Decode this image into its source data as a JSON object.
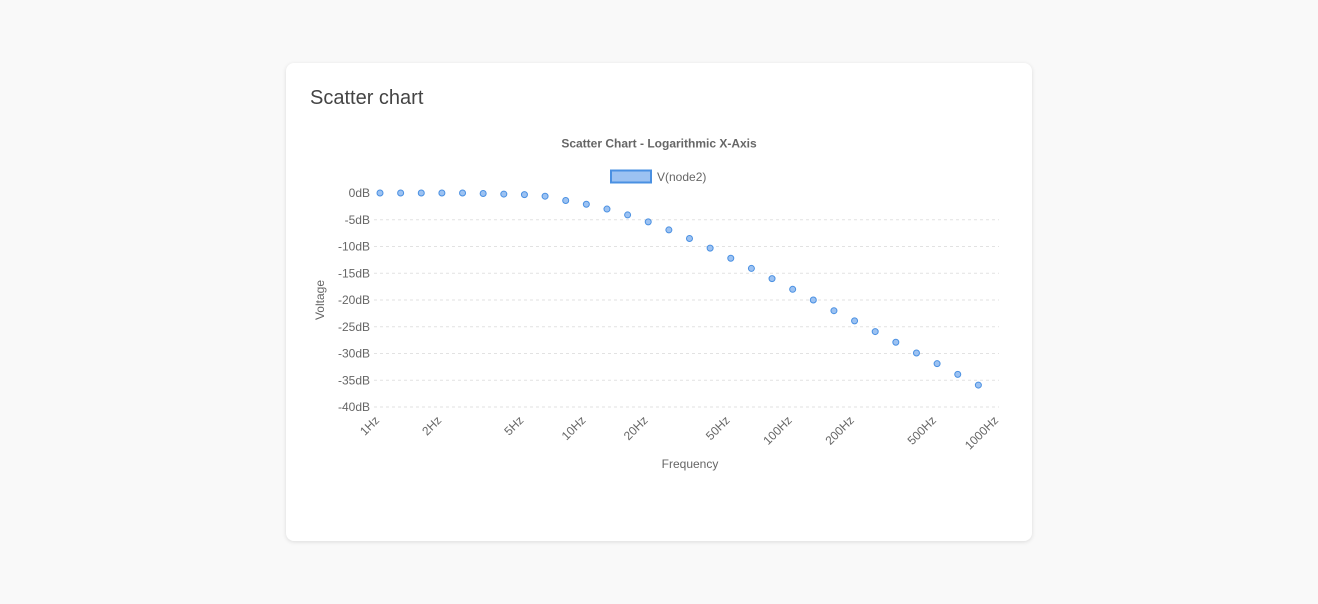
{
  "card": {
    "title": "Scatter chart"
  },
  "colors": {
    "point_fill": "#9cc2f2",
    "point_stroke": "#4a90e2",
    "legend_fill": "#9cc2f2",
    "legend_stroke": "#4a90e2",
    "grid": "#e2e2e2",
    "text": "#666666"
  },
  "chart_data": {
    "type": "scatter",
    "title": "Scatter Chart - Logarithmic X-Axis",
    "xlabel": "Frequency",
    "ylabel": "Voltage",
    "x_scale": "log",
    "xlim": [
      1,
      1000
    ],
    "ylim": [
      -40,
      0
    ],
    "grid": "horizontal, dashed",
    "legend_position": "top",
    "x_ticks": [
      {
        "value": 1,
        "label": "1Hz"
      },
      {
        "value": 2,
        "label": "2Hz"
      },
      {
        "value": 5,
        "label": "5Hz"
      },
      {
        "value": 10,
        "label": "10Hz"
      },
      {
        "value": 20,
        "label": "20Hz"
      },
      {
        "value": 50,
        "label": "50Hz"
      },
      {
        "value": 100,
        "label": "100Hz"
      },
      {
        "value": 200,
        "label": "200Hz"
      },
      {
        "value": 500,
        "label": "500Hz"
      },
      {
        "value": 1000,
        "label": "1000Hz"
      }
    ],
    "y_ticks": [
      {
        "value": 0,
        "label": "0dB"
      },
      {
        "value": -5,
        "label": "-5dB"
      },
      {
        "value": -10,
        "label": "-10dB"
      },
      {
        "value": -15,
        "label": "-15dB"
      },
      {
        "value": -20,
        "label": "-20dB"
      },
      {
        "value": -25,
        "label": "-25dB"
      },
      {
        "value": -30,
        "label": "-30dB"
      },
      {
        "value": -35,
        "label": "-35dB"
      },
      {
        "value": -40,
        "label": "-40dB"
      }
    ],
    "series": [
      {
        "name": "V(node2)",
        "points": [
          {
            "x": 1,
            "y": 0
          },
          {
            "x": 1.259,
            "y": 0
          },
          {
            "x": 1.585,
            "y": 0
          },
          {
            "x": 1.995,
            "y": 0
          },
          {
            "x": 2.512,
            "y": 0
          },
          {
            "x": 3.162,
            "y": -0.1
          },
          {
            "x": 3.981,
            "y": -0.2
          },
          {
            "x": 5.012,
            "y": -0.3
          },
          {
            "x": 6.31,
            "y": -0.6
          },
          {
            "x": 7.943,
            "y": -1.4
          },
          {
            "x": 10,
            "y": -2.1
          },
          {
            "x": 12.59,
            "y": -3.0
          },
          {
            "x": 15.85,
            "y": -4.1
          },
          {
            "x": 19.95,
            "y": -5.4
          },
          {
            "x": 25.12,
            "y": -6.9
          },
          {
            "x": 31.62,
            "y": -8.5
          },
          {
            "x": 39.81,
            "y": -10.3
          },
          {
            "x": 50.12,
            "y": -12.2
          },
          {
            "x": 63.1,
            "y": -14.1
          },
          {
            "x": 79.43,
            "y": -16.0
          },
          {
            "x": 100,
            "y": -18.0
          },
          {
            "x": 125.9,
            "y": -20.0
          },
          {
            "x": 158.5,
            "y": -22.0
          },
          {
            "x": 199.5,
            "y": -23.9
          },
          {
            "x": 251.2,
            "y": -25.9
          },
          {
            "x": 316.2,
            "y": -27.9
          },
          {
            "x": 398.1,
            "y": -29.9
          },
          {
            "x": 501.2,
            "y": -31.9
          },
          {
            "x": 631,
            "y": -33.9
          },
          {
            "x": 794.3,
            "y": -35.9
          }
        ]
      }
    ]
  }
}
